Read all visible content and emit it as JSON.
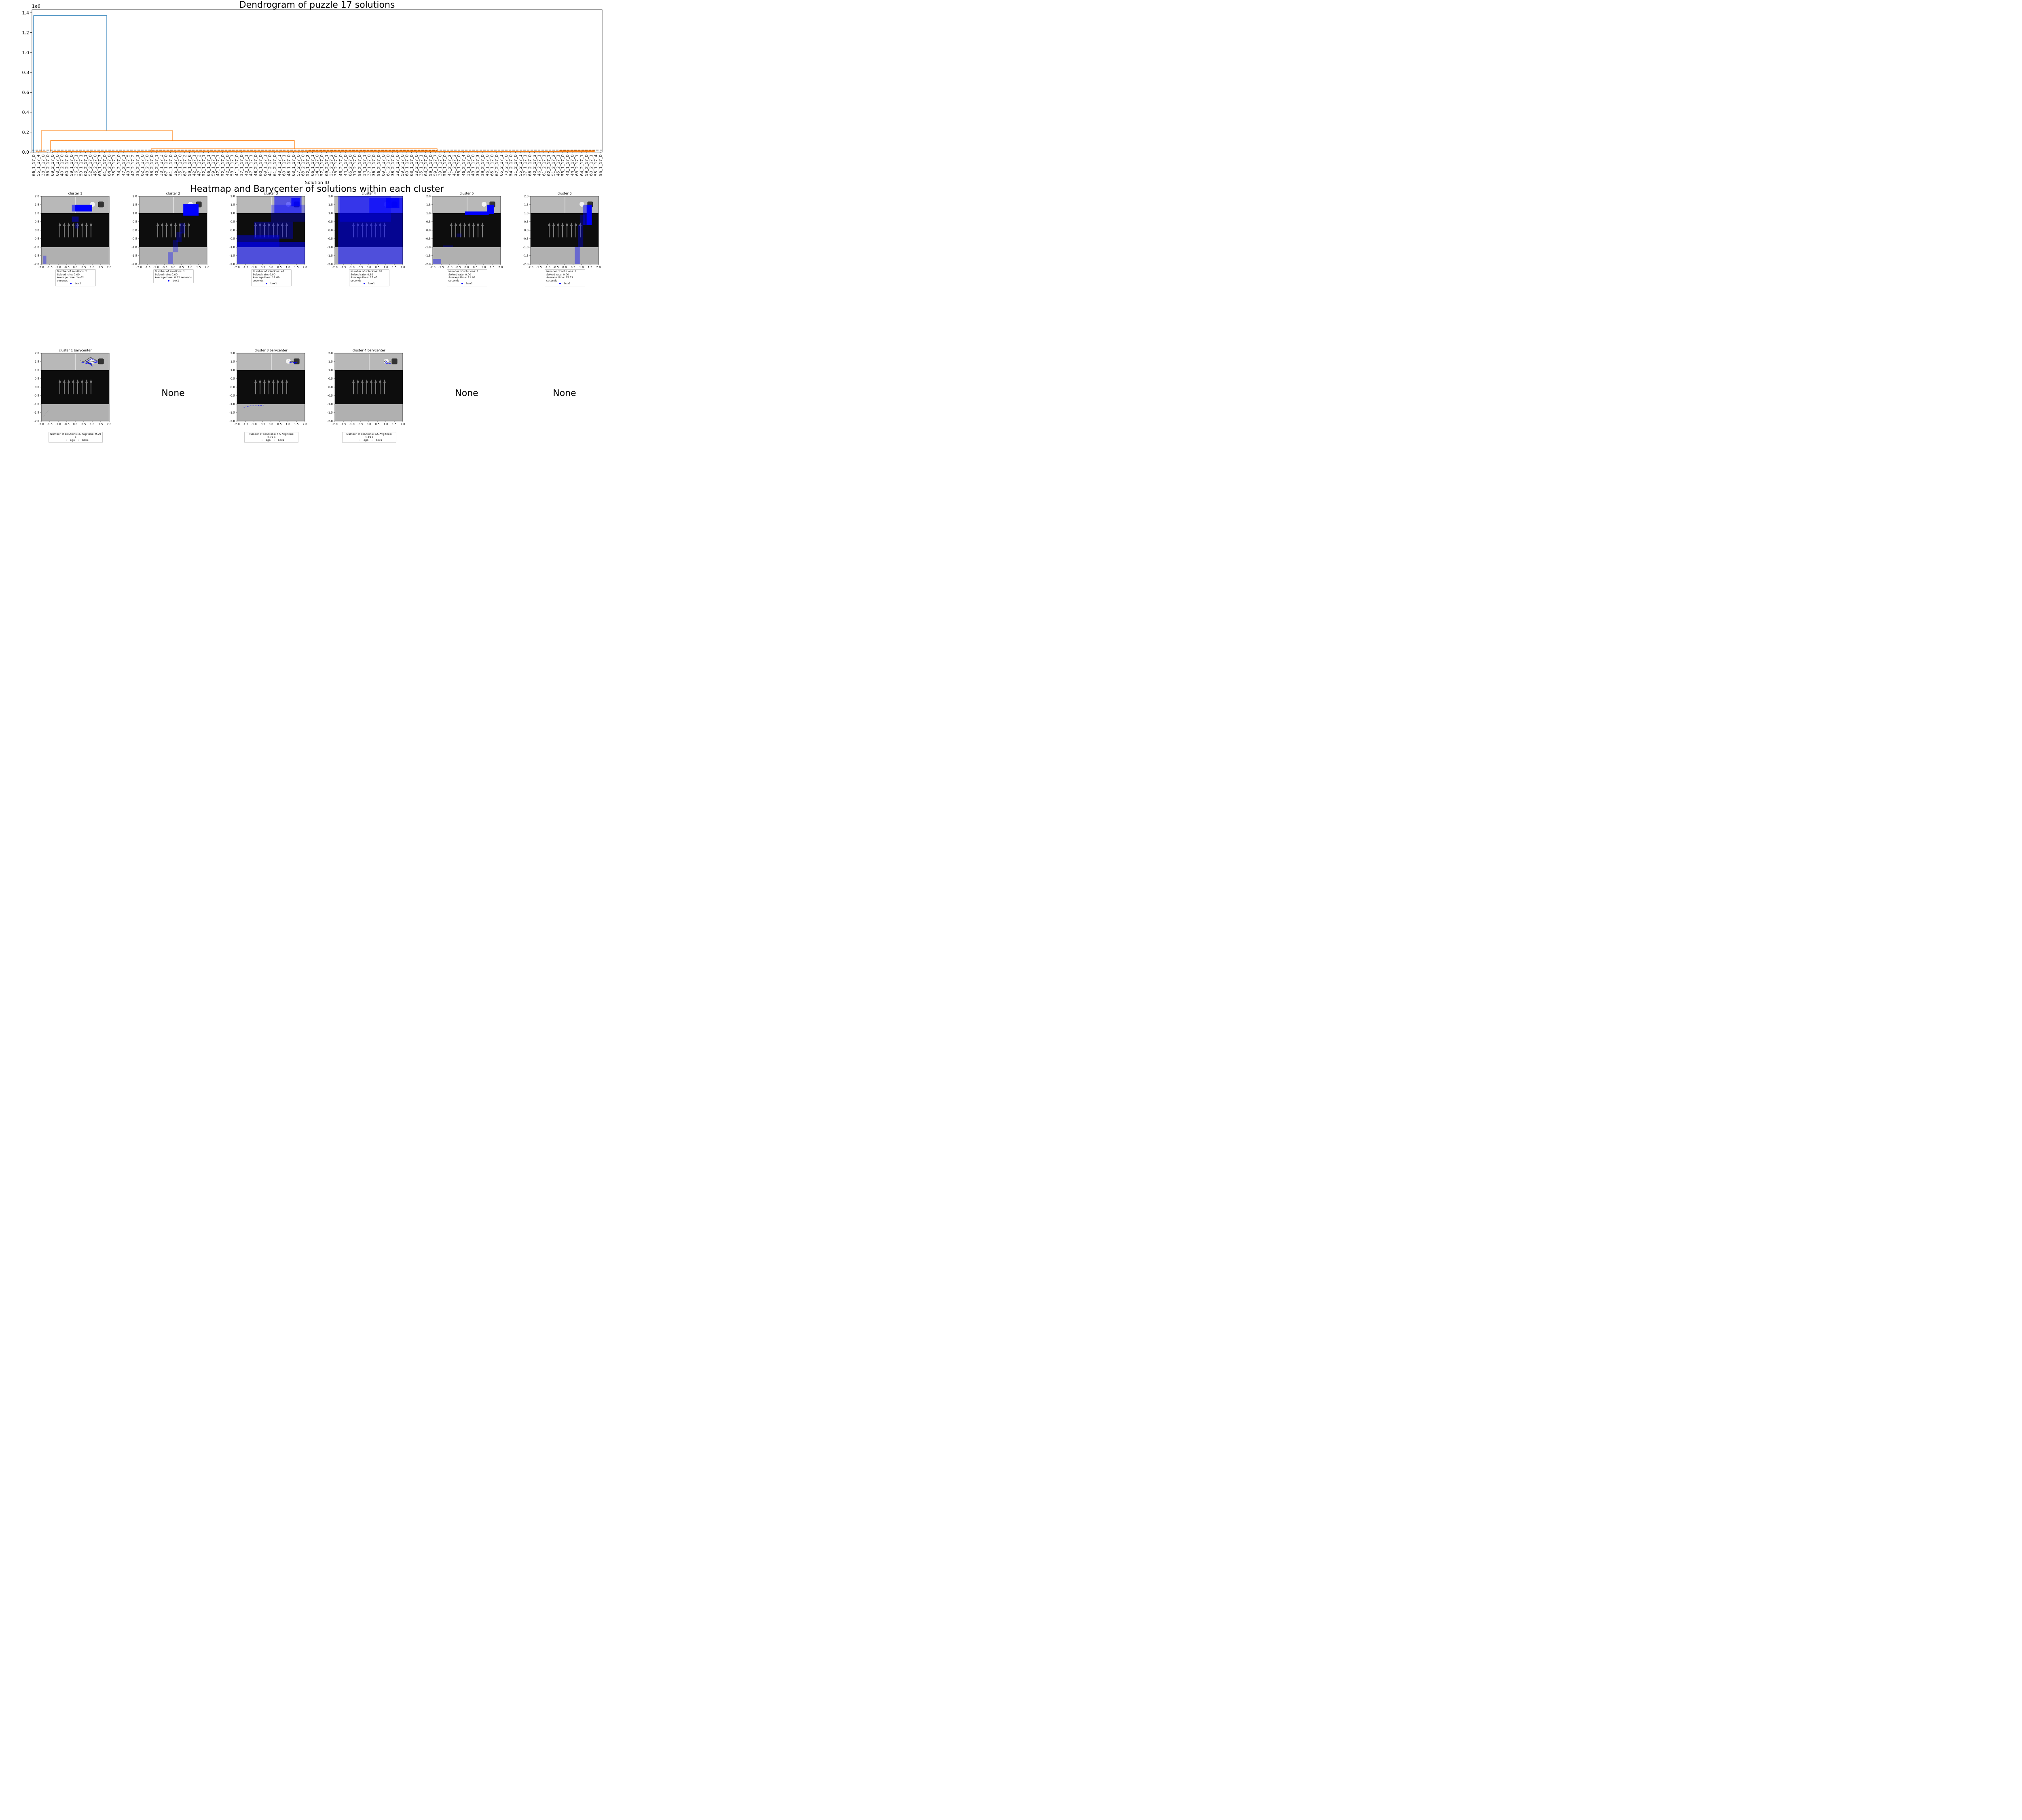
{
  "figure": {
    "dendrogram_title": "Dendrogram of puzzle 17 solutions",
    "heatmap_title": "Heatmap and Barycenter of solutions within each cluster"
  },
  "chart_data": [
    {
      "type": "dendrogram",
      "title": "Dendrogram of puzzle 17 solutions",
      "xlabel": "Solution ID",
      "ylabel": "",
      "y_scale_label": "1e6",
      "ylim": [
        0,
        1.43
      ],
      "yticks": [
        0.0,
        0.2,
        0.4,
        0.6,
        0.8,
        1.0,
        1.2,
        1.4
      ],
      "threshold": 0.02,
      "leaves": [
        "66_1_17_0",
        "55_1_17_4",
        "38_1_17_0",
        "55_2_17_0",
        "69_2_17_0",
        "68_1_17_0",
        "40_2_17_0",
        "60_2_17_0",
        "59_1_17_0",
        "36_2_17_1",
        "59_1_17_1",
        "62_2_17_1",
        "52_2_17_0",
        "45_2_17_0",
        "69_1_17_3",
        "61_2_17_0",
        "64_2_17_0",
        "35_2_17_1",
        "34_2_17_0",
        "47_2_17_1",
        "40_1_17_5",
        "47_2_17_2",
        "35_2_17_3",
        "62_1_17_0",
        "43_2_17_0",
        "53_2_17_0",
        "40_2_17_1",
        "38_1_17_3",
        "67_1_17_0",
        "61_1_17_0",
        "36_1_17_0",
        "35_1_17_0",
        "67_1_17_2",
        "59_1_17_6",
        "42_1_17_1",
        "47_1_17_2",
        "52_1_17_1",
        "66_1_17_1",
        "59_1_17_1",
        "47_1_17_1",
        "52_1_17_0",
        "42_1_17_0",
        "53_1_17_1",
        "41_1_17_0",
        "37_1_17_0",
        "40_1_17_1",
        "47_1_17_1",
        "48_2_17_0",
        "60_1_17_0",
        "69_1_17_1",
        "41_2_17_0",
        "61_2_17_0",
        "48_1_17_1",
        "60_1_17_1",
        "48_1_17_0",
        "63_1_17_0",
        "57_2_17_0",
        "63_2_17_0",
        "52_1_17_2",
        "66_1_17_1",
        "34_1_17_0",
        "57_1_17_0",
        "69_2_17_1",
        "31_2_17_2",
        "38_2_17_0",
        "46_2_17_0",
        "44_1_17_0",
        "65_2_17_0",
        "70_2_17_0",
        "58_2_17_0",
        "34_1_17_1",
        "37_1_17_0",
        "36_1_17_0",
        "56_2_17_0",
        "69_1_17_0",
        "61_2_17_0",
        "38_2_17_0",
        "38_1_17_0",
        "59_2_17_0",
        "60_1_17_0",
        "63_1_17_0",
        "33_2_17_0",
        "35_1_17_1",
        "64_2_17_0",
        "59_1_17_0",
        "59_1_17_7",
        "39_1_17_0",
        "56_1_17_0",
        "41_2_17_2",
        "41_2_17_2",
        "58_1_17_0",
        "46_2_17_4",
        "36_1_17_0",
        "43_1_17_0",
        "35_2_17_3",
        "39_2_17_0",
        "46_1_17_0",
        "65_1_17_0",
        "67_2_17_0",
        "65_2_17_1",
        "70_2_17_0",
        "54_2_17_0",
        "31_2_17_0",
        "55_2_17_1",
        "37_1_17_1",
        "66_2_17_0",
        "40_2_17_3",
        "46_2_17_1",
        "61_2_17_1",
        "62_2_17_1",
        "51_2_17_2",
        "45_2_17_1",
        "55_1_17_0",
        "43_1_17_0",
        "44_1_17_0",
        "68_2_17_1",
        "64_2_17_1",
        "59_2_17_0",
        "60_2_17_1",
        "55_1_17_4",
        "55_1_17_0"
      ],
      "links": [
        {
          "color": "#1f77b4",
          "left_height": 0.0,
          "right_height": 0.21,
          "height": 1.37,
          "left_leaf": 0,
          "right_leaf_pos": 0.121
        },
        {
          "color": "#ff7f0e",
          "height": 0.215
        },
        {
          "color": "#ff7f0e",
          "height": 0.115
        },
        {
          "color": "#ff7f0e",
          "height": 0.03
        }
      ]
    },
    {
      "type": "heatmap_grid",
      "x_range": [
        -2.0,
        2.0
      ],
      "y_range": [
        -2.0,
        2.0
      ],
      "xticks": [
        "-2.0",
        "-1.5",
        "-1.0",
        "-0.5",
        "0.0",
        "0.5",
        "1.0",
        "1.5",
        "2.0"
      ],
      "yticks": [
        "2.0",
        "1.5",
        "1.0",
        "0.5",
        "0.0",
        "-0.5",
        "-1.0",
        "-1.5",
        "-2.0"
      ],
      "panels": [
        {
          "title": "cluster 1",
          "num_solutions": 2,
          "solved_rate": "0.00",
          "avg_time": "14.62",
          "legend": "box1"
        },
        {
          "title": "cluster 2",
          "num_solutions": 1,
          "solved_rate": "0.00",
          "avg_time": "8.12",
          "legend": "box1"
        },
        {
          "title": "cluster 3",
          "num_solutions": 47,
          "solved_rate": "0.00",
          "avg_time": "12.69",
          "legend": "box1"
        },
        {
          "title": "cluster 4",
          "num_solutions": 82,
          "solved_rate": "0.89",
          "avg_time": "15.45",
          "legend": "box1"
        },
        {
          "title": "cluster 5",
          "num_solutions": 1,
          "solved_rate": "0.00",
          "avg_time": "11.68",
          "legend": "box1"
        },
        {
          "title": "cluster 6",
          "num_solutions": 1,
          "solved_rate": "0.00",
          "avg_time": "15.71",
          "legend": "box1"
        }
      ]
    },
    {
      "type": "barycenter_grid",
      "panels": [
        {
          "title": "cluster 1 barycenter",
          "num_solutions": 2,
          "avg_time": "9.79",
          "legend": [
            "ego",
            "box1"
          ]
        },
        {
          "none": "None"
        },
        {
          "title": "cluster 3 barycenter",
          "num_solutions": 47,
          "avg_time": "3.79",
          "legend": [
            "ego",
            "box1"
          ]
        },
        {
          "title": "cluster 4 barycenter",
          "num_solutions": 82,
          "avg_time": "1.19",
          "legend": [
            "ego",
            "box1"
          ]
        },
        {
          "none": "None"
        },
        {
          "none": "None"
        }
      ]
    }
  ],
  "text": {
    "num_solutions_prefix": "Number of solutions: ",
    "solved_rate_prefix": "Solved rate: ",
    "avg_time_prefix": "Average time: ",
    "avg_time_suffix": " seconds",
    "bary_avg_prefix": ", Avg time: ",
    "bary_avg_suffix": " s",
    "none": "None"
  },
  "colors": {
    "blue_link": "#1f77b4",
    "orange_link": "#ff7f0e",
    "heat": "#0000ff",
    "floor_dark": "#0d0d0d",
    "wall_light": "#b4b4b4"
  }
}
